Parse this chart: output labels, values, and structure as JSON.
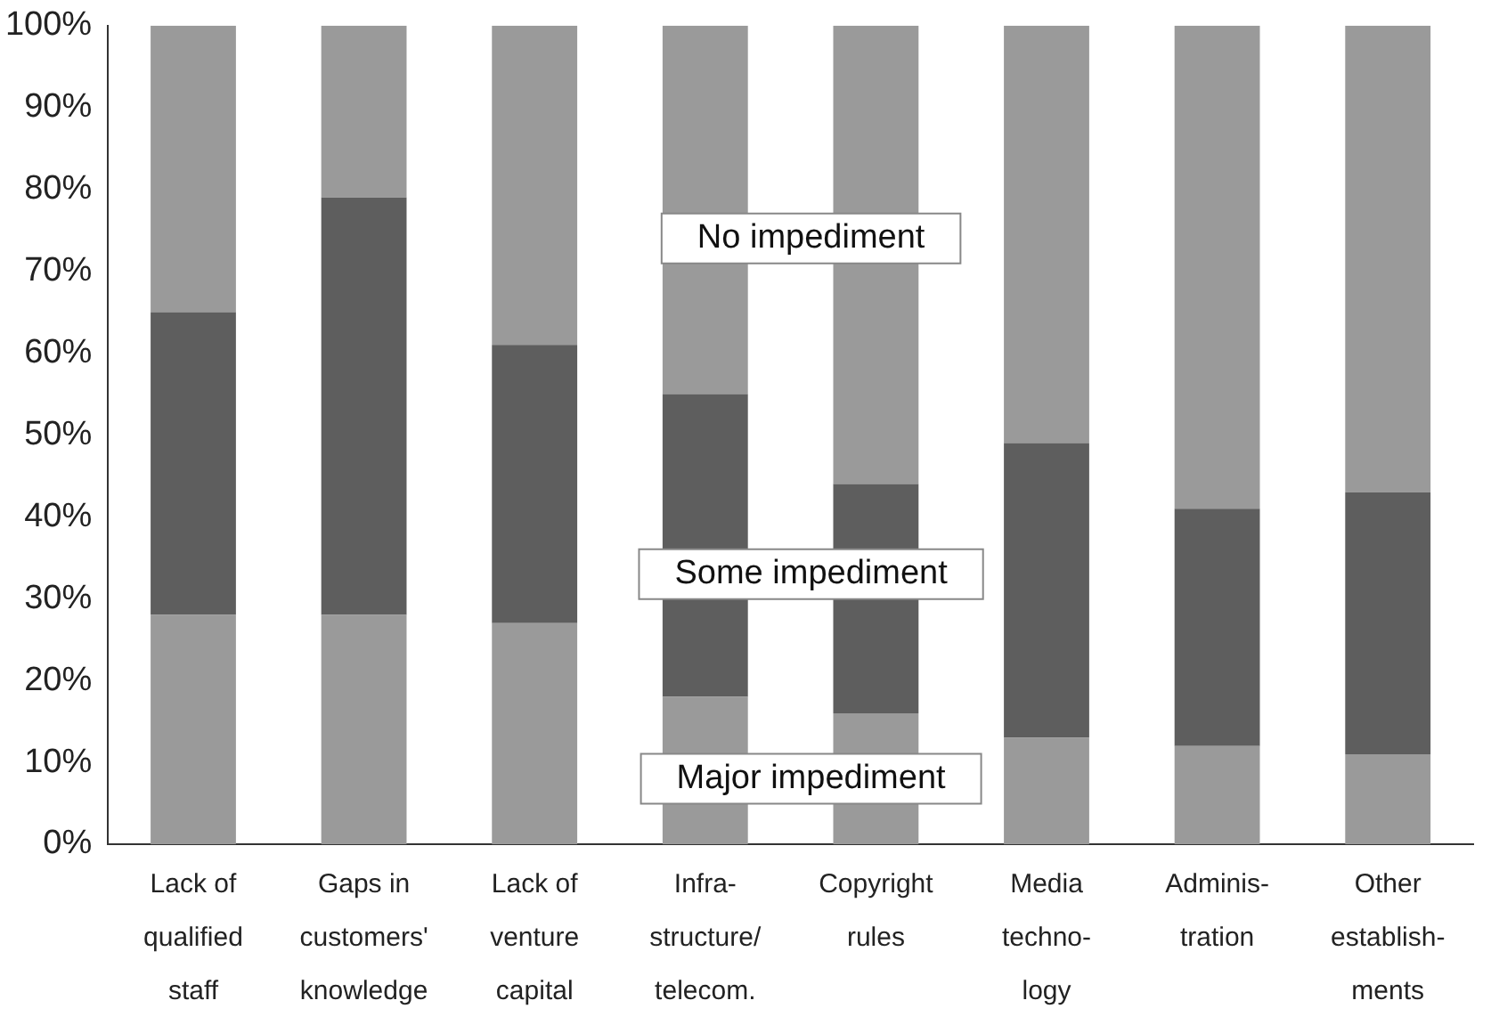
{
  "chart_data": {
    "type": "bar",
    "stacked": true,
    "legend": false,
    "grid": false,
    "categories": [
      "Lack of qualified staff",
      "Gaps in customers' knowledge",
      "Lack of venture capital",
      "Infra-structure/ telecom.",
      "Copyright rules",
      "Media techno-logy",
      "Adminis-tration",
      "Other establish-ments"
    ],
    "series": [
      {
        "name": "Major impediment",
        "color": "#9a9a9a",
        "values": [
          28,
          28,
          27,
          18,
          16,
          13,
          12,
          11
        ]
      },
      {
        "name": "Some impediment",
        "color": "#5e5e5e",
        "values": [
          37,
          51,
          34,
          37,
          28,
          36,
          29,
          32
        ]
      },
      {
        "name": "No impediment",
        "color": "#9a9a9a",
        "values": [
          35,
          21,
          39,
          45,
          56,
          51,
          59,
          57
        ]
      }
    ],
    "ylim": [
      0,
      100
    ],
    "yticks": [
      {
        "value": 0,
        "label": "0%"
      },
      {
        "value": 10,
        "label": "10%"
      },
      {
        "value": 20,
        "label": "20%"
      },
      {
        "value": 30,
        "label": "30%"
      },
      {
        "value": 40,
        "label": "40%"
      },
      {
        "value": 50,
        "label": "50%"
      },
      {
        "value": 60,
        "label": "60%"
      },
      {
        "value": 70,
        "label": "70%"
      },
      {
        "value": 80,
        "label": "80%"
      },
      {
        "value": 90,
        "label": "90%"
      },
      {
        "value": 100,
        "label": "100%"
      }
    ]
  }
}
